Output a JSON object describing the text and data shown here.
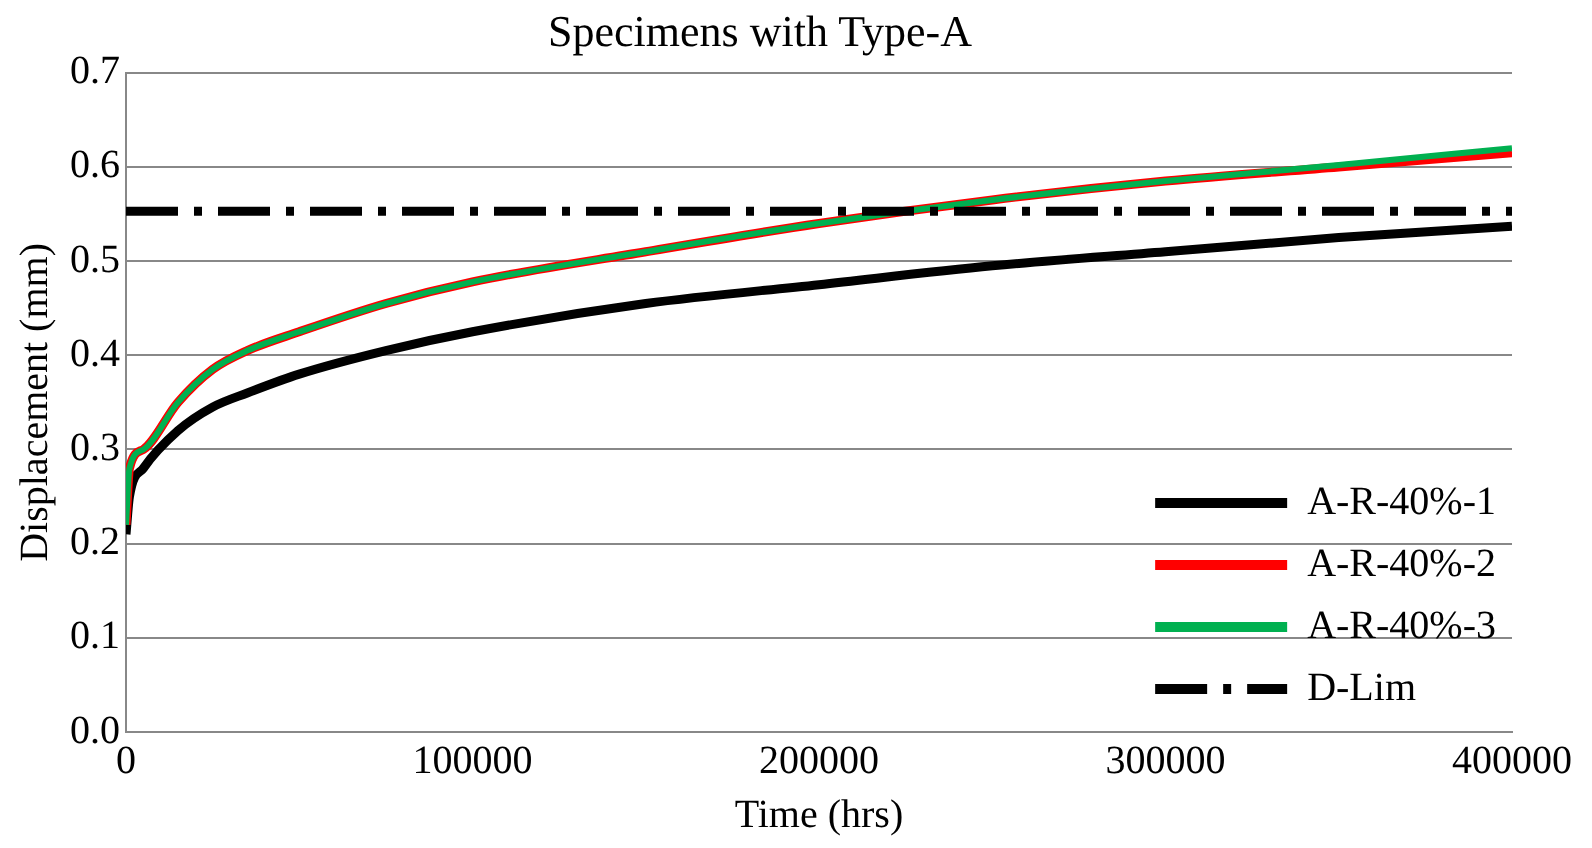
{
  "chart_data": {
    "type": "line",
    "title": "Specimens with Type-A",
    "xlabel": "Time (hrs)",
    "ylabel": "Displacement (mm)",
    "xlim": [
      0,
      400000
    ],
    "xticks": [
      0,
      100000,
      200000,
      300000,
      400000
    ],
    "ylim": [
      0,
      0.7
    ],
    "yticks": [
      {
        "value": 0,
        "label": "0.0"
      },
      0.1,
      0.2,
      0.3,
      0.4,
      0.5,
      0.6,
      0.7
    ],
    "grid": "y",
    "legend": "bottom right",
    "marker": "none",
    "series": [
      {
        "name": "A-R-40%-1",
        "color": "#000000",
        "x": [
          0,
          1000,
          5000,
          15000,
          25000,
          35000,
          50000,
          75000,
          100000,
          150000,
          200000,
          250000,
          300000,
          350000,
          400000
        ],
        "values": [
          0.21,
          0.25,
          0.28,
          0.32,
          0.345,
          0.36,
          0.38,
          0.405,
          0.425,
          0.455,
          0.475,
          0.495,
          0.51,
          0.525,
          0.537
        ]
      },
      {
        "name": "A-R-40%-2",
        "color": "#ff0000",
        "x": [
          0,
          1000,
          5000,
          15000,
          25000,
          35000,
          50000,
          75000,
          100000,
          150000,
          200000,
          250000,
          300000,
          350000,
          400000
        ],
        "values": [
          0.22,
          0.28,
          0.3,
          0.35,
          0.385,
          0.405,
          0.425,
          0.455,
          0.478,
          0.51,
          0.54,
          0.565,
          0.585,
          0.6,
          0.615
        ]
      },
      {
        "name": "A-R-40%-3",
        "color": "#00b050",
        "x": [
          0,
          1000,
          5000,
          15000,
          25000,
          35000,
          50000,
          75000,
          100000,
          150000,
          200000,
          250000,
          300000,
          350000,
          400000
        ],
        "values": [
          0.22,
          0.28,
          0.3,
          0.35,
          0.385,
          0.405,
          0.425,
          0.455,
          0.478,
          0.51,
          0.54,
          0.565,
          0.585,
          0.602,
          0.62
        ]
      },
      {
        "name": "D-Lim",
        "color": "#000000",
        "line_style": "dashed",
        "x": [
          0,
          400000
        ],
        "values": [
          0.553,
          0.553
        ]
      }
    ]
  }
}
